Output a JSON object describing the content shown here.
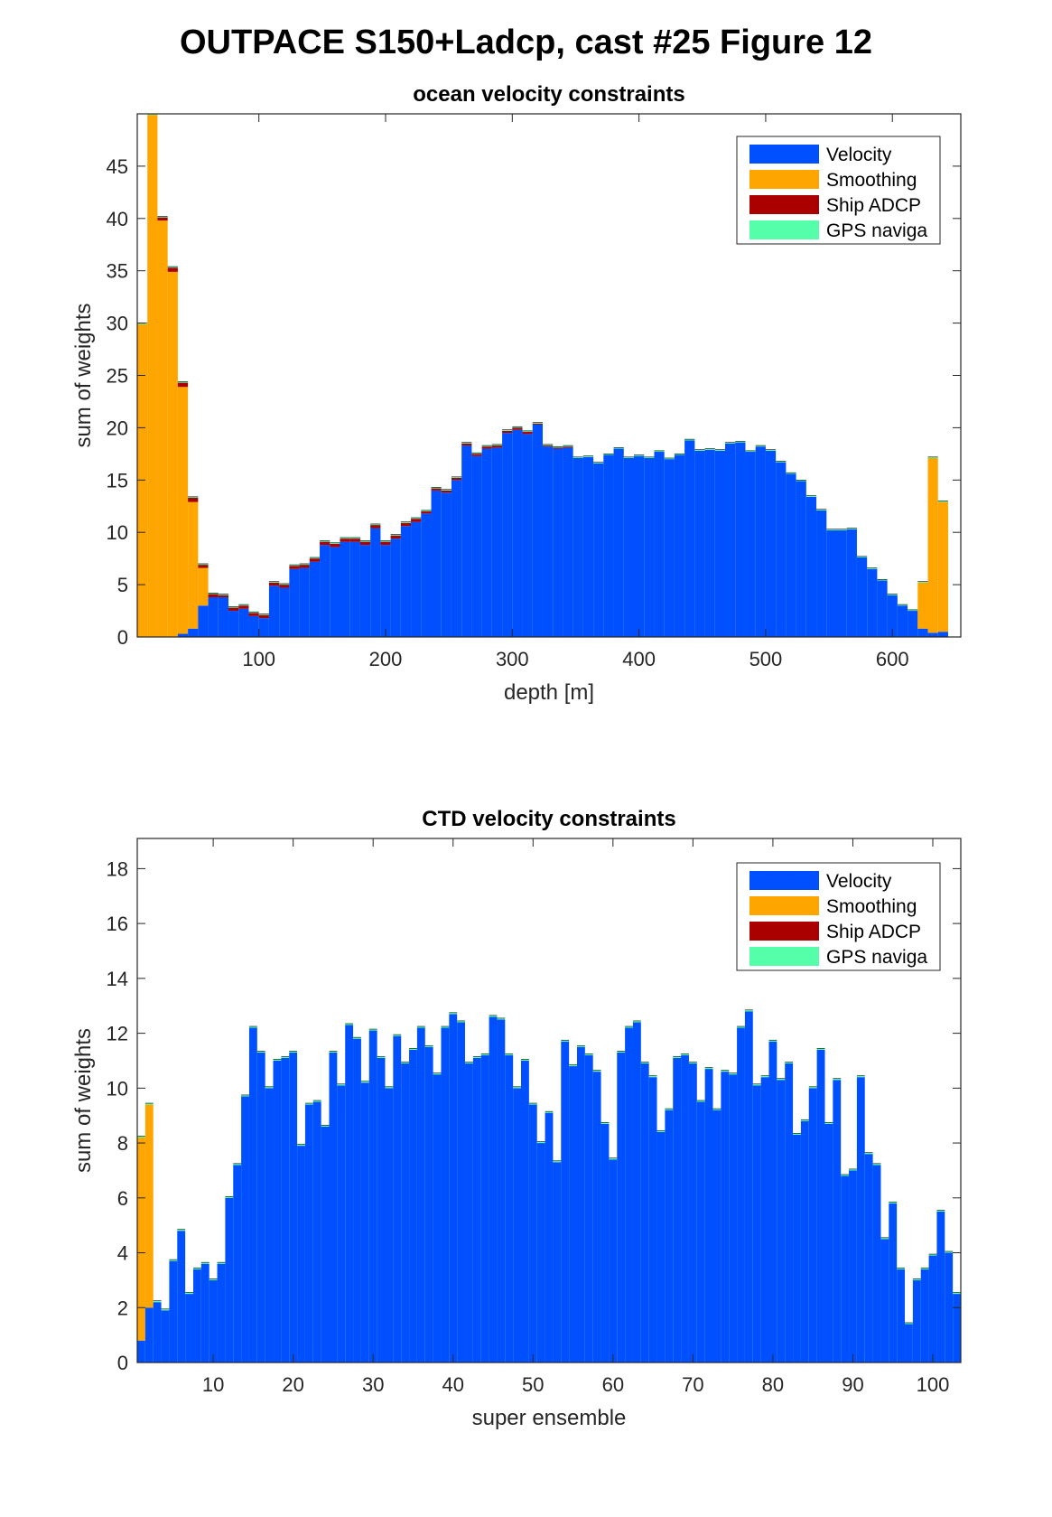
{
  "figure_title": "OUTPACE S150+Ladcp, cast #25  Figure 12",
  "colors": {
    "Velocity": "#0050ff",
    "Smoothing": "#ffa500",
    "Ship ADCP": "#aa0000",
    "GPS naviga": "#55ffaa"
  },
  "chart_data": [
    {
      "type": "bar",
      "stacked": true,
      "title": "ocean velocity constraints",
      "xlabel": "depth [m]",
      "ylabel": "sum of weights",
      "xlim": [
        4,
        654
      ],
      "ylim": [
        0,
        50
      ],
      "xticks": [
        100,
        200,
        300,
        400,
        500,
        600
      ],
      "yticks": [
        0,
        5,
        10,
        15,
        20,
        25,
        30,
        35,
        40,
        45
      ],
      "legend_position": "top-right",
      "bin_start": 4,
      "bin_width": 8,
      "series": [
        {
          "name": "Velocity",
          "values": [
            0.0,
            0.0,
            0.0,
            0.0,
            0.3,
            0.8,
            3.0,
            3.8,
            3.8,
            2.5,
            2.7,
            2.0,
            1.8,
            4.9,
            4.7,
            6.5,
            6.6,
            7.2,
            8.8,
            8.6,
            9.1,
            9.1,
            8.8,
            10.4,
            8.8,
            9.4,
            10.6,
            11.0,
            11.8,
            14.0,
            13.8,
            15.0,
            18.3,
            17.3,
            18.0,
            18.1,
            19.5,
            19.8,
            19.4,
            20.3,
            18.2,
            18.0,
            18.1,
            17.1,
            17.2,
            16.6,
            17.4,
            18.0,
            17.1,
            17.3,
            17.1,
            17.7,
            17.0,
            17.4,
            18.8,
            17.8,
            17.9,
            17.8,
            18.5,
            18.6,
            17.7,
            18.2,
            17.8,
            16.7,
            15.6,
            14.9,
            13.4,
            12.1,
            10.2,
            10.2,
            10.3,
            7.6,
            6.5,
            5.4,
            4.0,
            3.0,
            2.5,
            0.8,
            0.4,
            0.5
          ]
        },
        {
          "name": "Smoothing",
          "values": [
            29.9,
            49.9,
            39.8,
            34.9,
            23.6,
            12.1,
            3.6,
            0.0,
            0.0,
            0.0,
            0.0,
            0.0,
            0.0,
            0.0,
            0.0,
            0.0,
            0.0,
            0.0,
            0.0,
            0.0,
            0.0,
            0.0,
            0.0,
            0.0,
            0.0,
            0.0,
            0.0,
            0.0,
            0.0,
            0.0,
            0.0,
            0.0,
            0.0,
            0.0,
            0.0,
            0.0,
            0.0,
            0.0,
            0.0,
            0.0,
            0.0,
            0.0,
            0.0,
            0.0,
            0.0,
            0.0,
            0.0,
            0.0,
            0.0,
            0.0,
            0.0,
            0.0,
            0.0,
            0.0,
            0.0,
            0.0,
            0.0,
            0.0,
            0.0,
            0.0,
            0.0,
            0.0,
            0.0,
            0.0,
            0.0,
            0.0,
            0.0,
            0.0,
            0.0,
            0.0,
            0.0,
            0.0,
            0.0,
            0.0,
            0.0,
            0.0,
            0.0,
            4.4,
            16.7,
            12.4
          ]
        },
        {
          "name": "Ship ADCP",
          "values": [
            0.0,
            0.0,
            0.3,
            0.4,
            0.4,
            0.4,
            0.3,
            0.3,
            0.2,
            0.3,
            0.3,
            0.3,
            0.3,
            0.3,
            0.3,
            0.3,
            0.3,
            0.3,
            0.3,
            0.3,
            0.3,
            0.3,
            0.3,
            0.3,
            0.3,
            0.3,
            0.3,
            0.3,
            0.2,
            0.2,
            0.2,
            0.2,
            0.2,
            0.2,
            0.2,
            0.2,
            0.2,
            0.2,
            0.2,
            0.1,
            0.1,
            0.1,
            0.1,
            0.0,
            0.0,
            0.0,
            0.0,
            0.0,
            0.0,
            0.0,
            0.0,
            0.0,
            0.0,
            0.0,
            0.0,
            0.0,
            0.0,
            0.0,
            0.0,
            0.0,
            0.0,
            0.0,
            0.0,
            0.0,
            0.0,
            0.0,
            0.0,
            0.0,
            0.0,
            0.0,
            0.0,
            0.0,
            0.0,
            0.0,
            0.0,
            0.0,
            0.0,
            0.0,
            0.0,
            0.0
          ]
        },
        {
          "name": "GPS naviga",
          "values": [
            0.1,
            0.1,
            0.1,
            0.1,
            0.1,
            0.1,
            0.1,
            0.1,
            0.1,
            0.1,
            0.1,
            0.1,
            0.1,
            0.1,
            0.1,
            0.1,
            0.1,
            0.1,
            0.1,
            0.1,
            0.1,
            0.1,
            0.1,
            0.1,
            0.1,
            0.1,
            0.1,
            0.1,
            0.1,
            0.1,
            0.1,
            0.1,
            0.1,
            0.1,
            0.1,
            0.1,
            0.1,
            0.1,
            0.1,
            0.1,
            0.1,
            0.1,
            0.1,
            0.1,
            0.1,
            0.1,
            0.1,
            0.1,
            0.1,
            0.1,
            0.1,
            0.1,
            0.1,
            0.1,
            0.1,
            0.1,
            0.1,
            0.1,
            0.1,
            0.1,
            0.1,
            0.1,
            0.1,
            0.1,
            0.1,
            0.1,
            0.1,
            0.1,
            0.1,
            0.1,
            0.1,
            0.1,
            0.1,
            0.1,
            0.1,
            0.1,
            0.1,
            0.1,
            0.1,
            0.1
          ]
        }
      ]
    },
    {
      "type": "bar",
      "stacked": true,
      "title": "CTD velocity constraints",
      "xlabel": "super ensemble",
      "ylabel": "sum of weights",
      "xlim": [
        0.5,
        103.5
      ],
      "ylim": [
        0,
        19.1
      ],
      "xticks": [
        10,
        20,
        30,
        40,
        50,
        60,
        70,
        80,
        90,
        100
      ],
      "yticks": [
        0,
        2,
        4,
        6,
        8,
        10,
        12,
        14,
        16,
        18
      ],
      "legend_position": "top-right",
      "bin_start": 0.5,
      "bin_width": 1,
      "series": [
        {
          "name": "Velocity",
          "values": [
            0.8,
            2.0,
            2.2,
            1.9,
            3.7,
            4.8,
            2.5,
            3.4,
            3.6,
            3.0,
            3.6,
            6.0,
            7.2,
            9.7,
            12.2,
            11.3,
            10.0,
            11.0,
            11.1,
            11.3,
            7.9,
            9.4,
            9.5,
            8.6,
            11.3,
            10.1,
            12.3,
            11.8,
            10.2,
            12.1,
            11.1,
            10.0,
            11.9,
            10.9,
            11.4,
            12.2,
            11.5,
            10.5,
            12.2,
            12.7,
            12.4,
            10.9,
            11.1,
            11.2,
            12.6,
            12.5,
            11.2,
            10.0,
            11.0,
            9.4,
            8.0,
            9.1,
            7.3,
            11.7,
            10.8,
            11.5,
            11.2,
            10.6,
            8.7,
            7.4,
            11.3,
            12.2,
            12.4,
            10.9,
            10.4,
            8.4,
            9.2,
            11.1,
            11.2,
            10.9,
            9.5,
            10.7,
            9.2,
            10.6,
            10.5,
            12.2,
            12.8,
            10.1,
            10.4,
            11.7,
            10.3,
            10.9,
            8.3,
            8.8,
            10.0,
            11.4,
            8.7,
            10.3,
            6.8,
            7.0,
            10.4,
            7.6,
            7.2,
            4.5,
            5.8,
            3.4,
            1.4,
            3.0,
            3.4,
            3.9,
            5.5,
            4.0,
            2.5
          ]
        },
        {
          "name": "Smoothing",
          "values": [
            7.4,
            7.4,
            0.0,
            0.0,
            0.0,
            0.0,
            0.0,
            0.0,
            0.0,
            0.0,
            0.0,
            0.0,
            0.0,
            0.0,
            0.0,
            0.0,
            0.0,
            0.0,
            0.0,
            0.0,
            0.0,
            0.0,
            0.0,
            0.0,
            0.0,
            0.0,
            0.0,
            0.0,
            0.0,
            0.0,
            0.0,
            0.0,
            0.0,
            0.0,
            0.0,
            0.0,
            0.0,
            0.0,
            0.0,
            0.0,
            0.0,
            0.0,
            0.0,
            0.0,
            0.0,
            0.0,
            0.0,
            0.0,
            0.0,
            0.0,
            0.0,
            0.0,
            0.0,
            0.0,
            0.0,
            0.0,
            0.0,
            0.0,
            0.0,
            0.0,
            0.0,
            0.0,
            0.0,
            0.0,
            0.0,
            0.0,
            0.0,
            0.0,
            0.0,
            0.0,
            0.0,
            0.0,
            0.0,
            0.0,
            0.0,
            0.0,
            0.0,
            0.0,
            0.0,
            0.0,
            0.0,
            0.0,
            0.0,
            0.0,
            0.0,
            0.0,
            0.0,
            0.0,
            0.0,
            0.0,
            0.0,
            0.0,
            0.0,
            0.0,
            0.0,
            0.0,
            0.0,
            0.0,
            0.0,
            0.0,
            0.0,
            0.0,
            0.0
          ]
        },
        {
          "name": "Ship ADCP",
          "values": [
            0.0,
            0.0,
            0.0,
            0.0,
            0.0,
            0.0,
            0.0,
            0.0,
            0.0,
            0.0,
            0.0,
            0.0,
            0.0,
            0.0,
            0.0,
            0.0,
            0.0,
            0.0,
            0.0,
            0.0,
            0.0,
            0.0,
            0.0,
            0.0,
            0.0,
            0.0,
            0.0,
            0.0,
            0.0,
            0.0,
            0.0,
            0.0,
            0.0,
            0.0,
            0.0,
            0.0,
            0.0,
            0.0,
            0.0,
            0.0,
            0.0,
            0.0,
            0.0,
            0.0,
            0.0,
            0.0,
            0.0,
            0.0,
            0.0,
            0.0,
            0.0,
            0.0,
            0.0,
            0.0,
            0.0,
            0.0,
            0.0,
            0.0,
            0.0,
            0.0,
            0.0,
            0.0,
            0.0,
            0.0,
            0.0,
            0.0,
            0.0,
            0.0,
            0.0,
            0.0,
            0.0,
            0.0,
            0.0,
            0.0,
            0.0,
            0.0,
            0.0,
            0.0,
            0.0,
            0.0,
            0.0,
            0.0,
            0.0,
            0.0,
            0.0,
            0.0,
            0.0,
            0.0,
            0.0,
            0.0,
            0.0,
            0.0,
            0.0,
            0.0,
            0.0,
            0.0,
            0.0,
            0.0,
            0.0,
            0.0,
            0.0,
            0.0,
            0.0
          ]
        },
        {
          "name": "GPS naviga",
          "values": [
            0.05,
            0.05,
            0.05,
            0.05,
            0.05,
            0.05,
            0.05,
            0.05,
            0.05,
            0.05,
            0.05,
            0.05,
            0.05,
            0.05,
            0.05,
            0.05,
            0.05,
            0.05,
            0.05,
            0.05,
            0.05,
            0.05,
            0.05,
            0.05,
            0.05,
            0.05,
            0.05,
            0.05,
            0.05,
            0.05,
            0.05,
            0.05,
            0.05,
            0.05,
            0.05,
            0.05,
            0.05,
            0.05,
            0.05,
            0.05,
            0.05,
            0.05,
            0.05,
            0.05,
            0.05,
            0.05,
            0.05,
            0.05,
            0.05,
            0.05,
            0.05,
            0.05,
            0.05,
            0.05,
            0.05,
            0.05,
            0.05,
            0.05,
            0.05,
            0.05,
            0.05,
            0.05,
            0.05,
            0.05,
            0.05,
            0.05,
            0.05,
            0.05,
            0.05,
            0.05,
            0.05,
            0.05,
            0.05,
            0.05,
            0.05,
            0.05,
            0.05,
            0.05,
            0.05,
            0.05,
            0.05,
            0.05,
            0.05,
            0.05,
            0.05,
            0.05,
            0.05,
            0.05,
            0.05,
            0.05,
            0.05,
            0.05,
            0.05,
            0.05,
            0.05,
            0.05,
            0.05,
            0.05,
            0.05,
            0.05,
            0.05,
            0.05,
            0.05
          ]
        }
      ]
    }
  ]
}
